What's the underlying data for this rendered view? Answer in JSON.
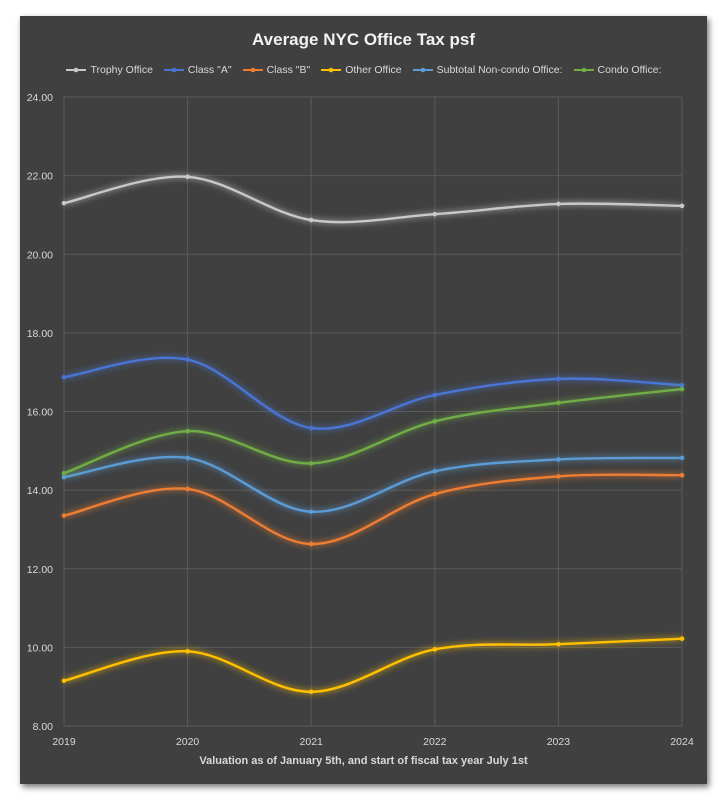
{
  "chart_data": {
    "type": "line",
    "title": "Average NYC Office Tax psf",
    "xlabel": "Valuation as of January 5th, and start of fiscal tax year July 1st",
    "ylabel": "",
    "categories": [
      "2019",
      "2020",
      "2021",
      "2022",
      "2023",
      "2024"
    ],
    "ylim": [
      8,
      24
    ],
    "yticks": [
      "8.00",
      "10.00",
      "12.00",
      "14.00",
      "16.00",
      "18.00",
      "20.00",
      "22.00",
      "24.00"
    ],
    "grid": true,
    "smooth": true,
    "legend_position": "top",
    "series": [
      {
        "name": "Trophy Office",
        "color": "#c8c8c8",
        "values": [
          21.3,
          21.97,
          20.87,
          21.02,
          21.28,
          21.23
        ]
      },
      {
        "name": "Class \"A\"",
        "color": "#4a74d4",
        "values": [
          16.87,
          17.32,
          15.58,
          16.42,
          16.83,
          16.67
        ]
      },
      {
        "name": "Class \"B\"",
        "color": "#ed7d31",
        "values": [
          13.35,
          14.03,
          12.63,
          13.9,
          14.35,
          14.38
        ]
      },
      {
        "name": "Other Office",
        "color": "#ffc000",
        "values": [
          9.15,
          9.9,
          8.87,
          9.95,
          10.08,
          10.22
        ]
      },
      {
        "name": "Subtotal Non-condo Office:",
        "color": "#5b9bd5",
        "values": [
          14.33,
          14.82,
          13.45,
          14.48,
          14.78,
          14.82
        ]
      },
      {
        "name": "Condo Office:",
        "color": "#70ad47",
        "values": [
          14.43,
          15.5,
          14.68,
          15.75,
          16.22,
          16.57
        ]
      }
    ]
  }
}
